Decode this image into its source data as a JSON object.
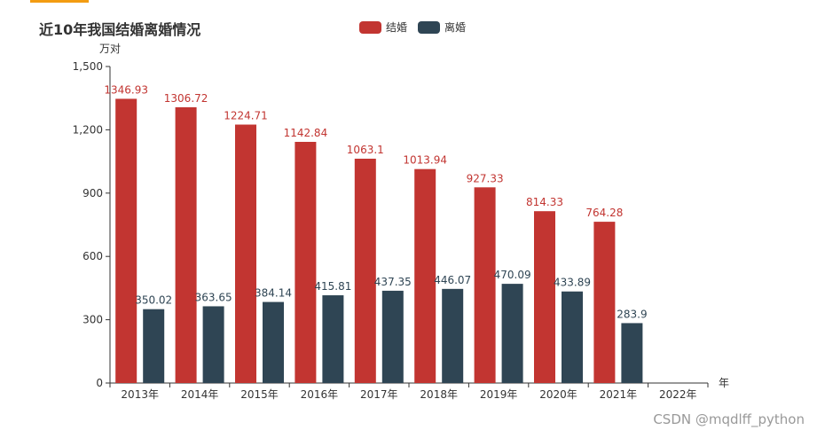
{
  "chart_data": {
    "type": "bar",
    "title": "近10年我国结婚离婚情况",
    "xlabel": "年",
    "ylabel": "万对",
    "ylim": [
      0,
      1500
    ],
    "yticks": [
      "0",
      "300",
      "600",
      "900",
      "1,200",
      "1,500"
    ],
    "categories": [
      "2013年",
      "2014年",
      "2015年",
      "2016年",
      "2017年",
      "2018年",
      "2019年",
      "2020年",
      "2021年",
      "2022年"
    ],
    "series": [
      {
        "name": "结婚",
        "color": "#c23531",
        "values": [
          1346.93,
          1306.72,
          1224.71,
          1142.84,
          1063.1,
          1013.94,
          927.33,
          814.33,
          764.28,
          null
        ]
      },
      {
        "name": "离婚",
        "color": "#2f4554",
        "values": [
          350.02,
          363.65,
          384.14,
          415.81,
          437.35,
          446.07,
          470.09,
          433.89,
          283.9,
          null
        ]
      }
    ],
    "legend_position": "top-center",
    "grid": false
  },
  "watermark": "CSDN @mqdlff_python"
}
